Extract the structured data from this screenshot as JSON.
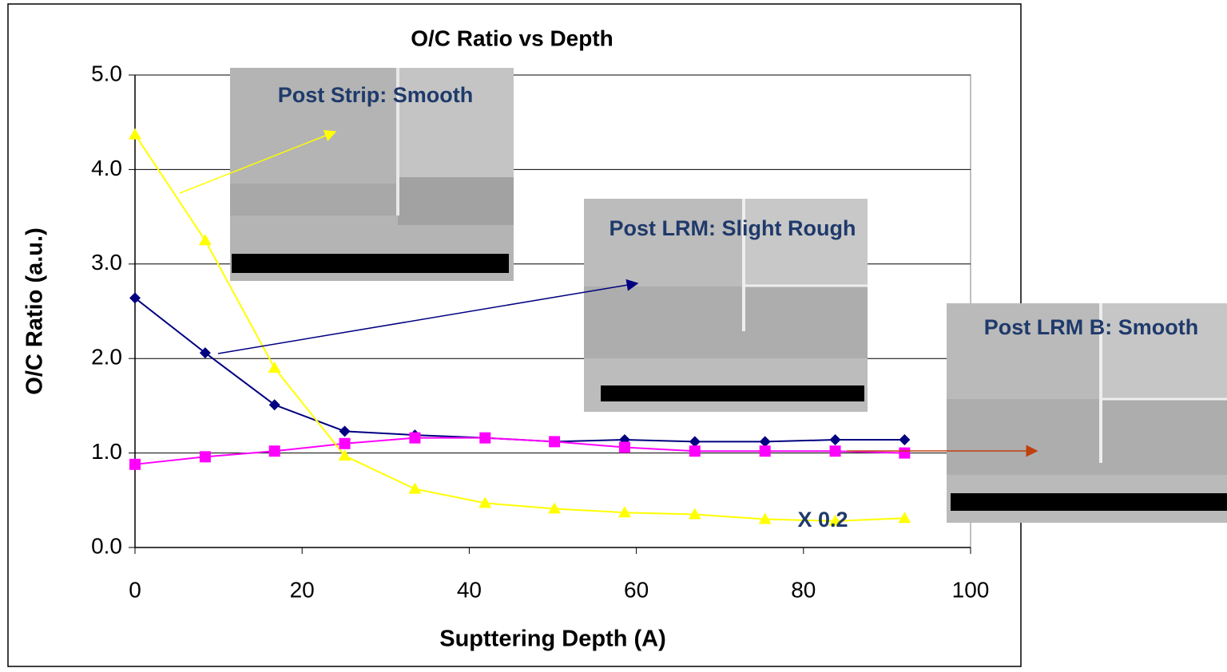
{
  "chart_data": {
    "type": "line",
    "title": "O/C Ratio vs Depth",
    "x_label": "Supttering Depth (A)",
    "y_label": "O/C Ratio (a.u.)",
    "x": [
      0,
      8.4,
      16.7,
      25.1,
      33.5,
      41.9,
      50.2,
      58.6,
      67.0,
      75.4,
      83.8,
      92.1
    ],
    "series": [
      {
        "color": "#000080",
        "marker": "diamond",
        "values": [
          2.64,
          2.06,
          1.51,
          1.23,
          1.19,
          1.16,
          1.12,
          1.14,
          1.12,
          1.12,
          1.14,
          1.14
        ]
      },
      {
        "color": "#ff00ff",
        "marker": "square",
        "values": [
          0.88,
          0.96,
          1.02,
          1.1,
          1.16,
          1.16,
          1.12,
          1.06,
          1.02,
          1.02,
          1.02,
          1.0
        ]
      },
      {
        "color": "#ffff00",
        "marker": "triangle",
        "values": [
          4.37,
          3.25,
          1.9,
          0.97,
          0.62,
          0.47,
          0.41,
          0.37,
          0.35,
          0.3,
          0.28,
          0.31
        ]
      }
    ],
    "xlim": [
      0,
      100
    ],
    "xticks": [
      0,
      20,
      40,
      60,
      80,
      100
    ],
    "ylim": [
      0,
      5
    ],
    "yticks": [
      {
        "value": 0,
        "label": "0.0"
      },
      {
        "value": 1,
        "label": "1.0"
      },
      {
        "value": 2,
        "label": "2.0"
      },
      {
        "value": 3,
        "label": "3.0"
      },
      {
        "value": 4,
        "label": "4.0"
      },
      {
        "value": 5,
        "label": "5.0"
      }
    ],
    "grid": true,
    "annotations": [
      "Post Strip: Smooth",
      "Post LRM: Slight Rough",
      "Post LRM B: Smooth",
      "X 0.2"
    ]
  }
}
